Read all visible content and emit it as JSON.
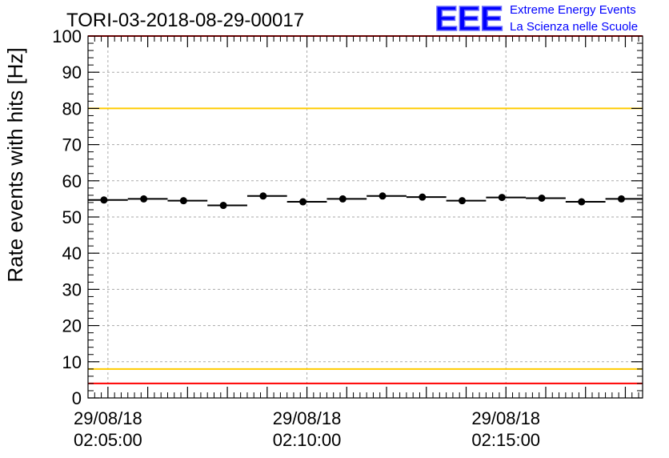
{
  "chart_data": {
    "type": "scatter",
    "title": "TORI-03-2018-08-29-00017",
    "xlabel": "",
    "ylabel": "Rate events with hits [Hz]",
    "ylim": [
      0,
      100
    ],
    "xlim": [
      "02:04:30",
      "02:18:26"
    ],
    "x": [
      "02:04:54",
      "02:05:54",
      "02:06:54",
      "02:07:54",
      "02:08:54",
      "02:09:54",
      "02:10:54",
      "02:11:54",
      "02:12:54",
      "02:13:54",
      "02:14:54",
      "02:15:54",
      "02:16:54",
      "02:17:54"
    ],
    "values": [
      54.7,
      55.0,
      54.5,
      53.2,
      55.8,
      54.2,
      55.0,
      55.8,
      55.5,
      54.5,
      55.4,
      55.2,
      54.2,
      55.0
    ],
    "bin_width_minutes": 1,
    "yticks": [
      "0",
      "10",
      "20",
      "30",
      "40",
      "50",
      "60",
      "70",
      "80",
      "90",
      "100"
    ],
    "xticks": [
      {
        "time": "02:05:00",
        "date": "29/08/18",
        "label": "02:05:00"
      },
      {
        "time": "02:10:00",
        "date": "29/08/18",
        "label": "02:10:00"
      },
      {
        "time": "02:15:00",
        "date": "29/08/18",
        "label": "02:15:00"
      }
    ],
    "reference_lines": [
      {
        "y": 100,
        "color": "#ff0000"
      },
      {
        "y": 80,
        "color": "#ffcc00"
      },
      {
        "y": 8,
        "color": "#ffcc00"
      },
      {
        "y": 4,
        "color": "#ff0000"
      }
    ],
    "grid": true
  },
  "logo": {
    "letters": "EEE",
    "line1": "Extreme Energy Events",
    "line2": "La Scienza nelle Scuole",
    "color": "#0000ff"
  }
}
